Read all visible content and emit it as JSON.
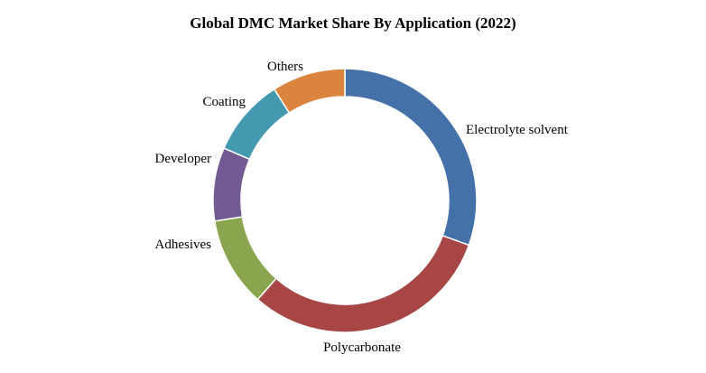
{
  "chart_data": {
    "type": "pie",
    "variant": "donut",
    "title": "Global DMC Market Share By Application (2022)",
    "categories": [
      "Electrolyte solvent",
      "Polycarbonate",
      "Adhesives",
      "Developer",
      "Coating",
      "Others"
    ],
    "values": [
      30.5,
      31,
      11,
      9,
      9.5,
      9
    ],
    "colors": [
      "#4472a8",
      "#a84646",
      "#89a64e",
      "#725a93",
      "#4299b0",
      "#db843d"
    ],
    "legend": "none",
    "data_labels": "outside"
  }
}
